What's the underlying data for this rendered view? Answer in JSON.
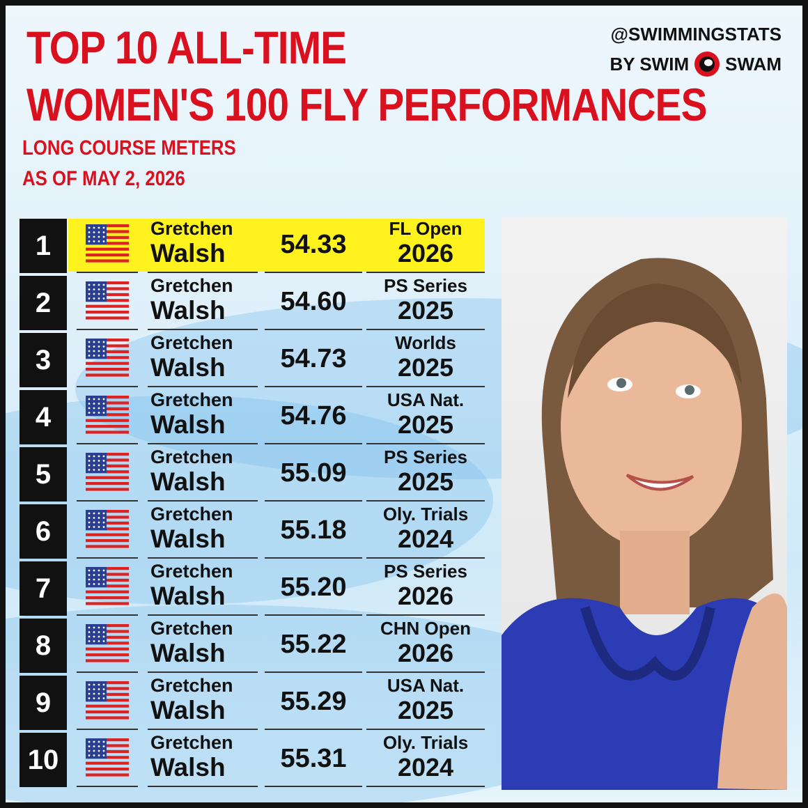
{
  "header": {
    "title_lines": [
      "TOP 10 ALL-TIME",
      "WOMEN'S 100 FLY PERFORMANCES"
    ],
    "subtitle_lines": [
      "LONG COURSE METERS",
      "AS OF MAY 2, 2026"
    ],
    "brand": {
      "handle": "@SWIMMINGSTATS",
      "by": "BY SWIM",
      "swam": "SWAM"
    }
  },
  "table": {
    "rows": [
      {
        "rank": 1,
        "first": "Gretchen",
        "last": "Walsh",
        "time": "54.33",
        "meet": "FL Open",
        "year": 2026
      },
      {
        "rank": 2,
        "first": "Gretchen",
        "last": "Walsh",
        "time": "54.60",
        "meet": "PS Series",
        "year": 2025
      },
      {
        "rank": 3,
        "first": "Gretchen",
        "last": "Walsh",
        "time": "54.73",
        "meet": "Worlds",
        "year": 2025
      },
      {
        "rank": 4,
        "first": "Gretchen",
        "last": "Walsh",
        "time": "54.76",
        "meet": "USA Nat.",
        "year": 2025
      },
      {
        "rank": 5,
        "first": "Gretchen",
        "last": "Walsh",
        "time": "55.09",
        "meet": "PS Series",
        "year": 2025
      },
      {
        "rank": 6,
        "first": "Gretchen",
        "last": "Walsh",
        "time": "55.18",
        "meet": "Oly. Trials",
        "year": 2024
      },
      {
        "rank": 7,
        "first": "Gretchen",
        "last": "Walsh",
        "time": "55.20",
        "meet": "PS Series",
        "year": 2026
      },
      {
        "rank": 8,
        "first": "Gretchen",
        "last": "Walsh",
        "time": "55.22",
        "meet": "CHN Open",
        "year": 2026
      },
      {
        "rank": 9,
        "first": "Gretchen",
        "last": "Walsh",
        "time": "55.29",
        "meet": "USA Nat.",
        "year": 2025
      },
      {
        "rank": 10,
        "first": "Gretchen",
        "last": "Walsh",
        "time": "55.31",
        "meet": "Oly. Trials",
        "year": 2024
      }
    ]
  }
}
